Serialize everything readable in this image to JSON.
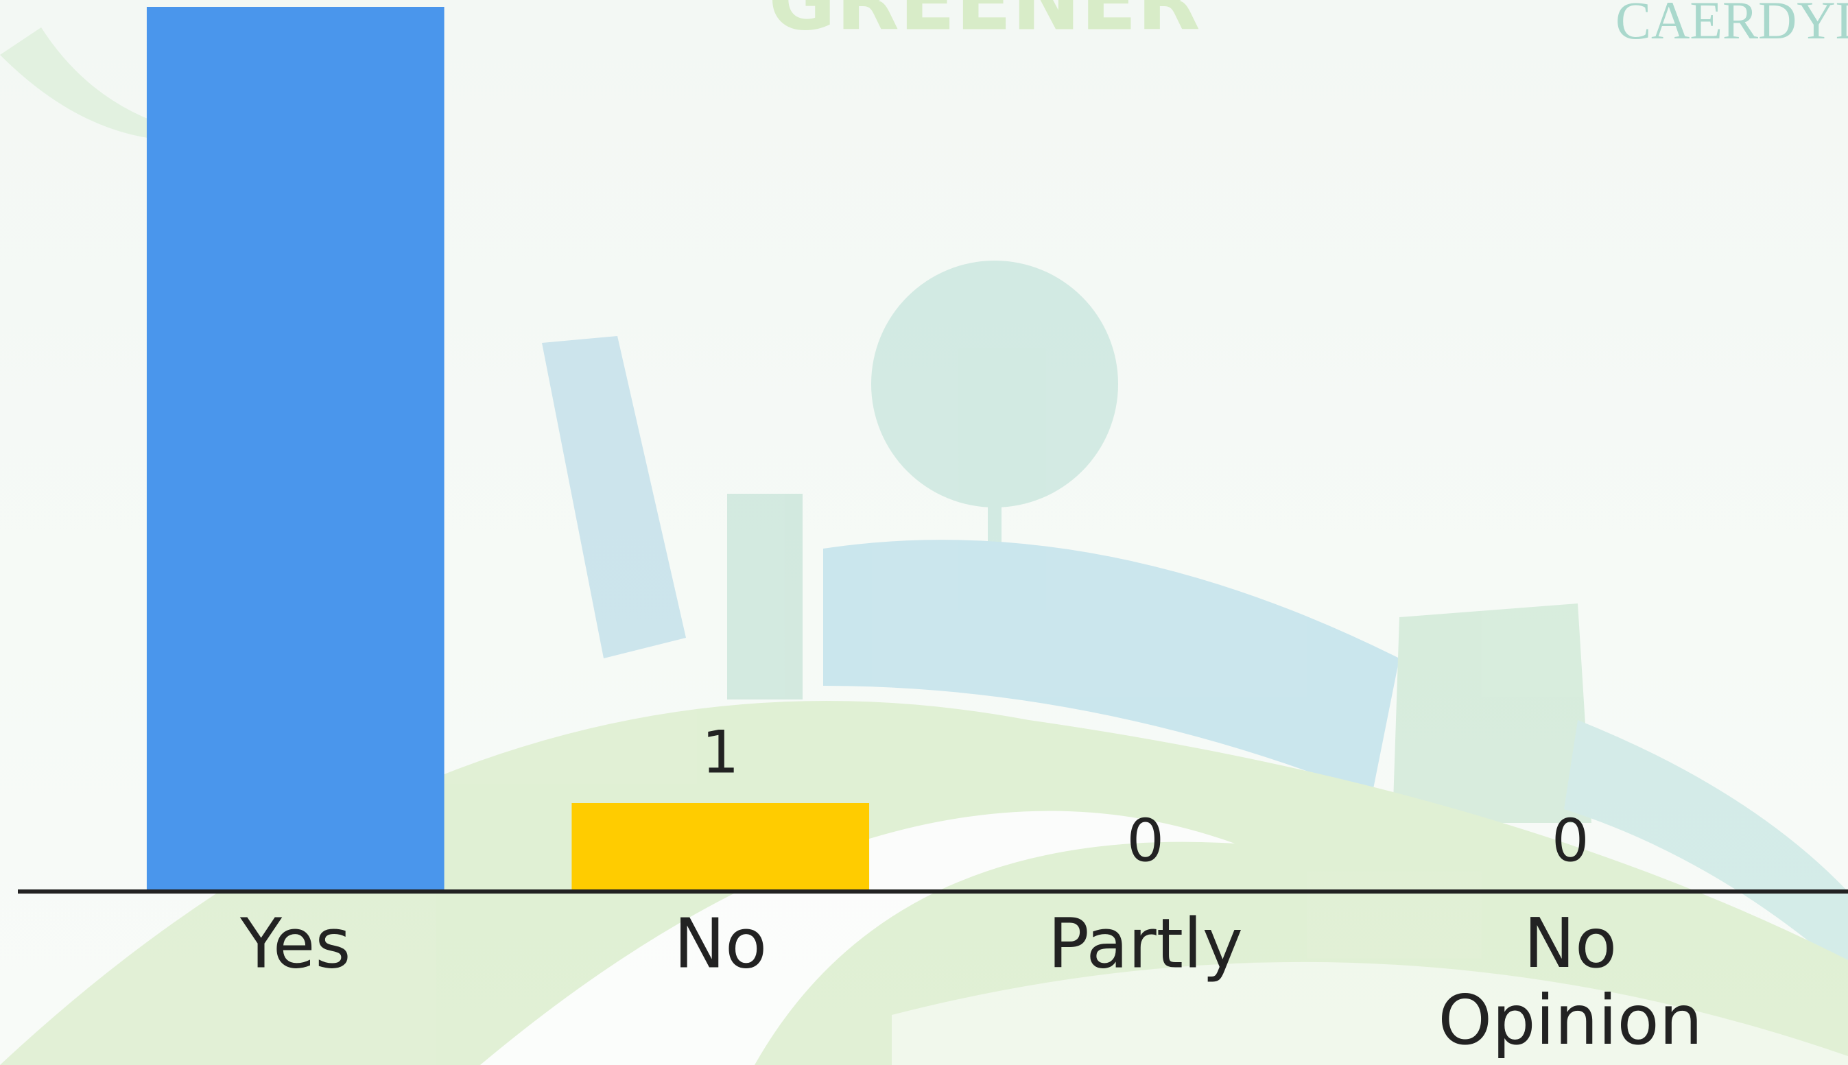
{
  "chart_data": {
    "type": "bar",
    "categories": [
      "Yes",
      "No",
      "Partly",
      "No Opinion"
    ],
    "values": [
      10,
      1,
      0,
      0
    ],
    "colors": [
      "#4a96ec",
      "#ffcc00",
      "#4a96ec",
      "#4a96ec"
    ],
    "ylim": [
      0,
      10
    ]
  },
  "watermark": {
    "left": "GREENER",
    "right": "CAERDYDD"
  }
}
